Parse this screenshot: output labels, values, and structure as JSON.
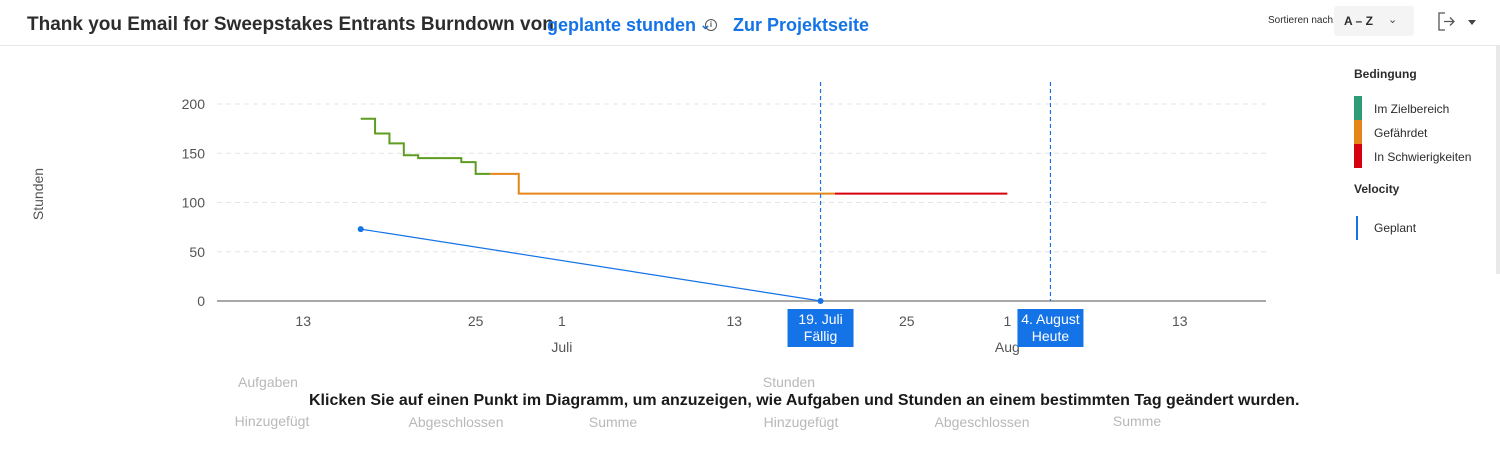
{
  "header": {
    "title": "Thank you Email for Sweepstakes Entrants Burndown von",
    "metric": "geplante stunden",
    "info_icon": "info-icon",
    "project_link": "Zur Projektseite",
    "sort_label": "Sortieren nach:",
    "sort_value": "A – Z",
    "export_icon": "export-icon"
  },
  "hint": "Klicken Sie auf einen Punkt im Diagramm, um anzuzeigen, wie Aufgaben und Stunden an einem bestimmten Tag geändert wurden.",
  "stats": {
    "aufgaben": "Aufgaben",
    "stunden": "Stunden",
    "row": [
      "Hinzugefügt",
      "Abgeschlossen",
      "Summe",
      "Hinzugefügt",
      "Abgeschlossen",
      "Summe"
    ]
  },
  "chart_data": {
    "type": "line",
    "ylabel": "Stunden",
    "ylim": [
      0,
      200
    ],
    "yticks": [
      0,
      50,
      100,
      150,
      200
    ],
    "xlim": [
      "2024-06-07",
      "2024-08-19"
    ],
    "x_ticks": [
      {
        "date": "2024-06-13",
        "label": "13"
      },
      {
        "date": "2024-06-25",
        "label": "25"
      },
      {
        "date": "2024-07-01",
        "label": "1"
      },
      {
        "date": "2024-07-13",
        "label": "13"
      },
      {
        "date": "2024-07-25",
        "label": "25"
      },
      {
        "date": "2024-08-01",
        "label": "1"
      },
      {
        "date": "2024-08-13",
        "label": "13"
      }
    ],
    "month_labels": [
      {
        "date": "2024-07-01",
        "label": "Juli"
      },
      {
        "date": "2024-08-01",
        "label": "Aug"
      }
    ],
    "grid": true,
    "legend_position": "right",
    "legend": {
      "condition_title": "Bedingung",
      "conditions": [
        {
          "name": "Im Zielbereich",
          "color": "#2d9d78"
        },
        {
          "name": "Gefährdet",
          "color": "#e68619"
        },
        {
          "name": "In Schwierigkeiten",
          "color": "#d7000f"
        }
      ],
      "velocity_title": "Velocity",
      "velocity": [
        {
          "name": "Geplant",
          "color": "#1473e6"
        }
      ]
    },
    "series": [
      {
        "condition": "Im Zielbereich",
        "color": "#5d9c21",
        "step": true,
        "points": [
          {
            "x": "2024-06-17",
            "y": 185
          },
          {
            "x": "2024-06-18",
            "y": 170
          },
          {
            "x": "2024-06-19",
            "y": 160
          },
          {
            "x": "2024-06-20",
            "y": 148
          },
          {
            "x": "2024-06-21",
            "y": 145
          },
          {
            "x": "2024-06-24",
            "y": 141
          },
          {
            "x": "2024-06-25",
            "y": 129
          },
          {
            "x": "2024-06-26",
            "y": 129
          }
        ]
      },
      {
        "condition": "Gefährdet",
        "color": "#e68619",
        "step": true,
        "points": [
          {
            "x": "2024-06-26",
            "y": 129
          },
          {
            "x": "2024-06-28",
            "y": 109
          },
          {
            "x": "2024-07-20",
            "y": 109
          }
        ]
      },
      {
        "condition": "In Schwierigkeiten",
        "color": "#d7000f",
        "step": true,
        "points": [
          {
            "x": "2024-07-20",
            "y": 109
          },
          {
            "x": "2024-08-01",
            "y": 109
          }
        ]
      },
      {
        "name": "Geplant",
        "color": "#1473e6",
        "step": false,
        "points": [
          {
            "x": "2024-06-17",
            "y": 73
          },
          {
            "x": "2024-07-19",
            "y": 0
          }
        ]
      }
    ],
    "markers": [
      {
        "date": "2024-07-19",
        "label_top": "19. Juli",
        "label_bottom": "Fällig",
        "color": "#1473e6"
      },
      {
        "date": "2024-08-04",
        "label_top": "4. August",
        "label_bottom": "Heute",
        "color": "#1473e6"
      }
    ]
  }
}
